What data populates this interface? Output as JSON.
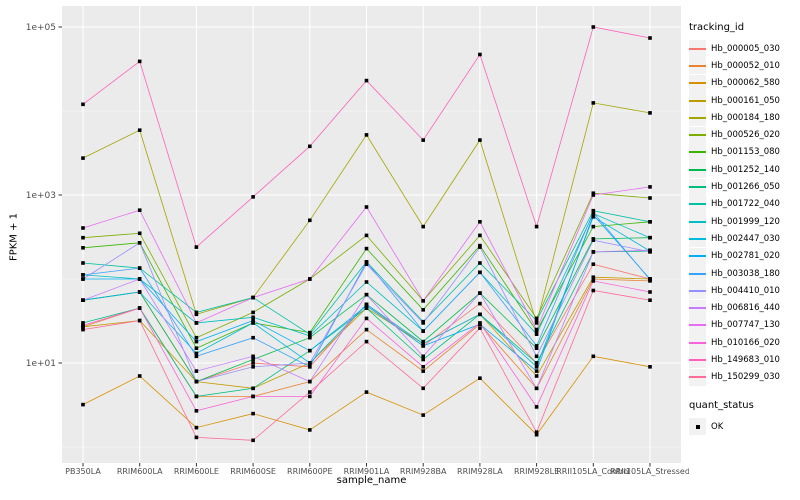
{
  "figure": {
    "background": "#FFFFFF",
    "panel_bg": "#EBEBEB",
    "grid_major": "#FFFFFF",
    "grid_minor": "#F6F6F6",
    "axis_text_color": "#4D4D4D",
    "tick_mark_color": "#333333",
    "point_color": "#000000",
    "legend_key_bg": "#F2F2F2"
  },
  "legend": {
    "tracking_title": "tracking_id",
    "quant_title": "quant_status",
    "quant_label": "OK"
  },
  "chart_data": {
    "type": "line",
    "title": "",
    "xlabel": "sample_name",
    "ylabel": "FPKM + 1",
    "y_scale": "log10",
    "ylim": [
      0.7,
      180000
    ],
    "y_tick_values": [
      10,
      1000,
      100000
    ],
    "y_tick_labels": [
      "1e+01",
      "1e+03",
      "1e+05"
    ],
    "y_minor_values": [
      1,
      100,
      10000
    ],
    "grid": true,
    "legend_position": "right",
    "point_shape": "filled-square",
    "categories": [
      "PB350LA",
      "RRIM600LA",
      "RRIM600LE",
      "RRIM600SE",
      "RRIM600PE",
      "RRIM901LA",
      "RRIM928BA",
      "RRIM928LA",
      "RRIM928LE",
      "RRII105LA_Control",
      "RRII105LA_Stressed"
    ],
    "series": [
      {
        "name": "Hb_000005_030",
        "color": "#F8766D",
        "values": [
          56,
          70,
          6,
          10,
          9,
          50,
          16,
          51,
          10,
          150,
          100
        ]
      },
      {
        "name": "Hb_000052_010",
        "color": "#EA8331",
        "values": [
          27,
          45,
          4,
          4,
          6,
          25,
          8,
          29,
          5,
          100,
          95
        ]
      },
      {
        "name": "Hb_000062_580",
        "color": "#D89000",
        "values": [
          3.2,
          7,
          1.7,
          2.5,
          1.6,
          4.5,
          2.4,
          6.6,
          1.4,
          12,
          9
        ]
      },
      {
        "name": "Hb_000161_050",
        "color": "#C09B00",
        "values": [
          27,
          32,
          6,
          5,
          10,
          45,
          17,
          38,
          7,
          105,
          100
        ]
      },
      {
        "name": "Hb_000184_180",
        "color": "#A3A500",
        "values": [
          2750,
          5900,
          38,
          60,
          500,
          5200,
          420,
          4500,
          30,
          12500,
          9500
        ]
      },
      {
        "name": "Hb_000526_020",
        "color": "#7CAE00",
        "values": [
          310,
          350,
          20,
          40,
          100,
          330,
          55,
          330,
          34,
          1050,
          920
        ]
      },
      {
        "name": "Hb_001153_080",
        "color": "#39B600",
        "values": [
          235,
          270,
          15,
          30,
          23,
          230,
          43,
          250,
          24,
          420,
          480
        ]
      },
      {
        "name": "Hb_001252_140",
        "color": "#00BB4E",
        "values": [
          56,
          70,
          6,
          11,
          20,
          65,
          18,
          68,
          15,
          300,
          310
        ]
      },
      {
        "name": "Hb_001266_050",
        "color": "#00BF7D",
        "values": [
          30,
          45,
          4,
          5,
          14,
          45,
          11,
          38,
          10,
          210,
          215
        ]
      },
      {
        "name": "Hb_001722_040",
        "color": "#00C1A3",
        "values": [
          155,
          135,
          40,
          60,
          22,
          160,
          31,
          155,
          32,
          650,
          480
        ]
      },
      {
        "name": "Hb_001999_120",
        "color": "#00BFC4",
        "values": [
          112,
          100,
          30,
          35,
          21,
          92,
          24,
          120,
          22,
          600,
          310
        ]
      },
      {
        "name": "Hb_002447_030",
        "color": "#00BAE0",
        "values": [
          56,
          70,
          13,
          30,
          10,
          50,
          17,
          38,
          9,
          550,
          215
        ]
      },
      {
        "name": "Hb_002781_020",
        "color": "#00B0F6",
        "values": [
          100,
          100,
          18,
          32,
          14,
          48,
          16,
          29,
          8,
          580,
          100
        ]
      },
      {
        "name": "Hb_003038_180",
        "color": "#35A2FF",
        "values": [
          112,
          135,
          12,
          20,
          9,
          160,
          24,
          120,
          16,
          620,
          98
        ]
      },
      {
        "name": "Hb_004410_010",
        "color": "#9590FF",
        "values": [
          100,
          270,
          6,
          9,
          10,
          150,
          30,
          240,
          12,
          290,
          210
        ]
      },
      {
        "name": "Hb_006816_440",
        "color": "#C77CFF",
        "values": [
          56,
          100,
          8,
          12,
          6,
          65,
          12,
          68,
          5,
          210,
          220
        ]
      },
      {
        "name": "Hb_007747_130",
        "color": "#E76BF3",
        "values": [
          405,
          660,
          30,
          60,
          100,
          720,
          55,
          480,
          25,
          1000,
          1250
        ]
      },
      {
        "name": "Hb_010166_020",
        "color": "#FA62DB",
        "values": [
          28,
          45,
          2.7,
          4,
          4,
          34,
          9,
          30,
          3,
          95,
          70
        ]
      },
      {
        "name": "Hb_149683_010",
        "color": "#FF62BC",
        "values": [
          12000,
          39000,
          240,
          950,
          3800,
          23000,
          4500,
          47000,
          420,
          100000,
          74000
        ]
      },
      {
        "name": "Hb_150299_030",
        "color": "#FF6A98",
        "values": [
          25,
          32,
          1.3,
          1.2,
          4.5,
          18,
          5,
          26,
          1.5,
          73,
          56
        ]
      }
    ]
  }
}
